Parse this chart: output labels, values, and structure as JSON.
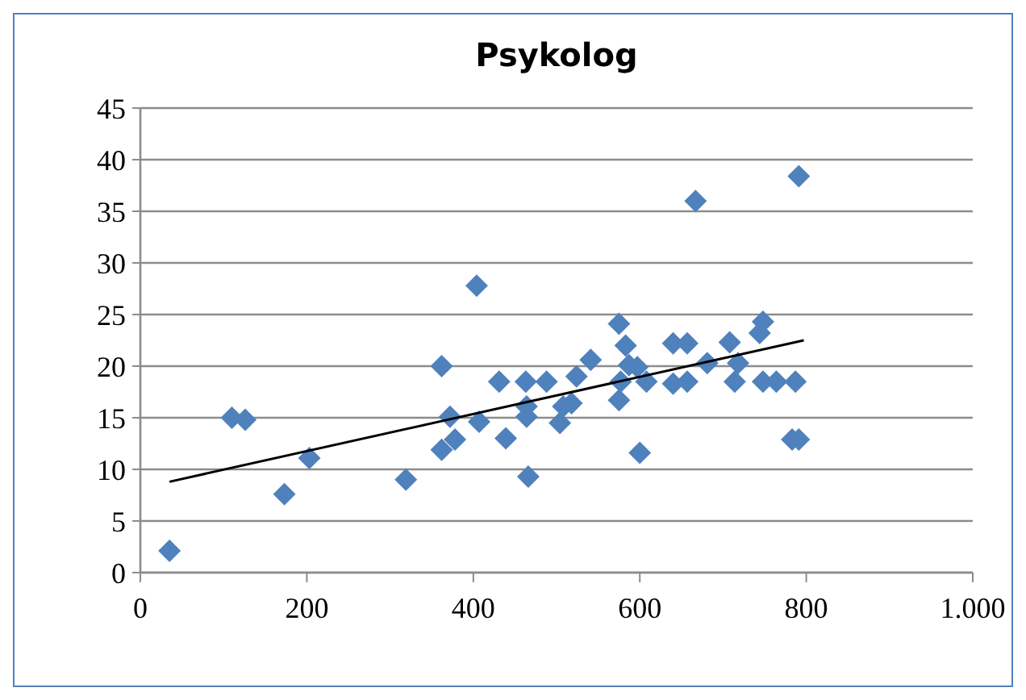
{
  "chart_data": {
    "type": "scatter",
    "title": "Psykolog",
    "xlim": [
      0,
      1000
    ],
    "xticks": [
      0,
      200,
      400,
      600,
      800,
      {
        "value": 1000,
        "label": "1.000"
      }
    ],
    "ylim": [
      0,
      45
    ],
    "yticks": [
      0,
      5,
      10,
      15,
      20,
      25,
      30,
      35,
      40,
      45
    ],
    "grid": "y",
    "marker": "diamond",
    "series": [
      {
        "color": "#4f81bd",
        "x": [
          35,
          110,
          126,
          173,
          203,
          319,
          362,
          404,
          372,
          362,
          378,
          407,
          439,
          466,
          431,
          463,
          488,
          464,
          464,
          508,
          504,
          518,
          524,
          541,
          575,
          583,
          575,
          577,
          587,
          597,
          608,
          600,
          640,
          657,
          640,
          657,
          681,
          708,
          718,
          714,
          748,
          744,
          748,
          764,
          783,
          791,
          787,
          791,
          667
        ],
        "values": [
          2.1,
          15,
          14.8,
          7.6,
          11.1,
          9,
          20,
          27.8,
          15.1,
          11.9,
          12.9,
          14.6,
          13,
          9.3,
          18.5,
          18.5,
          18.5,
          15.1,
          16.1,
          16.1,
          14.5,
          16.4,
          19,
          20.6,
          24.1,
          22,
          16.7,
          18.5,
          20.1,
          19.9,
          18.5,
          11.6,
          22.2,
          22.2,
          18.3,
          18.5,
          20.3,
          22.3,
          20.3,
          18.5,
          24.3,
          23.2,
          18.5,
          18.5,
          12.9,
          38.4,
          18.5,
          12.9,
          36
        ]
      },
      {
        "type": "line",
        "color": "#000000",
        "marker": "none",
        "x": [
          35,
          797
        ],
        "values": [
          8.8,
          22.5
        ]
      }
    ]
  }
}
